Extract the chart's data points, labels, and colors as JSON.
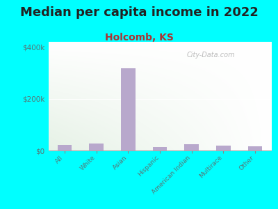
{
  "title": "Median per capita income in 2022",
  "subtitle": "Holcomb, KS",
  "title_fontsize": 13,
  "subtitle_fontsize": 10,
  "title_color": "#222222",
  "subtitle_color": "#aa3333",
  "background_color": "#00FFFF",
  "plot_bg_topleft": "#c8e6b0",
  "plot_bg_bottomright": "#f8fff4",
  "categories": [
    "All",
    "White",
    "Asian",
    "Hispanic",
    "American Indian",
    "Multirace",
    "Other"
  ],
  "values": [
    22000,
    27000,
    318000,
    13000,
    25000,
    18000,
    17000
  ],
  "bar_color": "#b8a8cc",
  "ylim": [
    0,
    420000
  ],
  "yticks": [
    0,
    200000,
    400000
  ],
  "ytick_labels": [
    "$0",
    "$200k",
    "$400k"
  ],
  "watermark": "City-Data.com",
  "bar_width": 0.45,
  "tick_color": "#557777"
}
